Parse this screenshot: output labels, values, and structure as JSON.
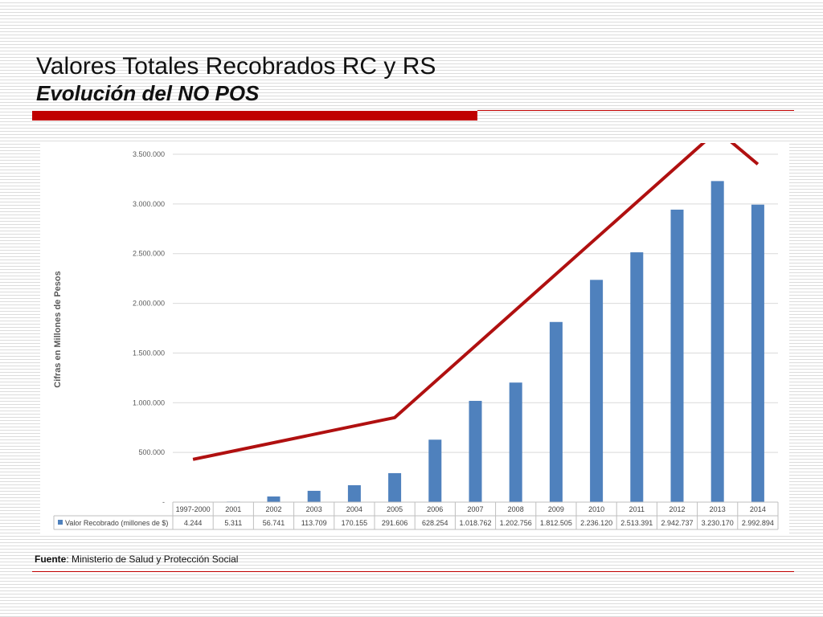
{
  "slide": {
    "title": "Valores Totales Recobrados RC y RS",
    "subtitle": "Evolución del NO POS"
  },
  "source": {
    "label": "Fuente",
    "separator": ":",
    "text": "Ministerio de Salud y Protección Social"
  },
  "colors": {
    "bar": "#4f81bd",
    "trend": "#b01010",
    "accent": "#c00000",
    "grid": "#d9d9d9"
  },
  "chart_data": {
    "type": "bar",
    "title": "",
    "xlabel": "",
    "ylabel": "Cifras en Millones de Pesos",
    "ylim": [
      0,
      3500000
    ],
    "y_ticks": [
      0,
      500000,
      1000000,
      1500000,
      2000000,
      2500000,
      3000000,
      3500000
    ],
    "y_tick_labels": [
      "-",
      "500.000",
      "1.000.000",
      "1.500.000",
      "2.000.000",
      "2.500.000",
      "3.000.000",
      "3.500.000"
    ],
    "grid": true,
    "legend": "data-table",
    "categories": [
      "1997-2000",
      "2001",
      "2002",
      "2003",
      "2004",
      "2005",
      "2006",
      "2007",
      "2008",
      "2009",
      "2010",
      "2011",
      "2012",
      "2013",
      "2014"
    ],
    "series": [
      {
        "name": "Valor Recobrado (millones de $)",
        "values": [
          4244,
          5311,
          56741,
          113709,
          170155,
          291606,
          628254,
          1018762,
          1202756,
          1812505,
          2236120,
          2513391,
          2942737,
          3230170,
          2992894
        ],
        "value_labels": [
          "4.244",
          "5.311",
          "56.741",
          "113.709",
          "170.155",
          "291.606",
          "628.254",
          "1.018.762",
          "1.202.756",
          "1.812.505",
          "2.236.120",
          "2.513.391",
          "2.942.737",
          "3.230.170",
          "2.992.894"
        ]
      }
    ],
    "trend_line": {
      "points": [
        {
          "category": "1997-2000",
          "value": 430000
        },
        {
          "category": "2005",
          "value": 850000
        },
        {
          "category": "2013",
          "value": 3740000
        },
        {
          "category": "2014",
          "value": 3400000
        }
      ]
    }
  }
}
